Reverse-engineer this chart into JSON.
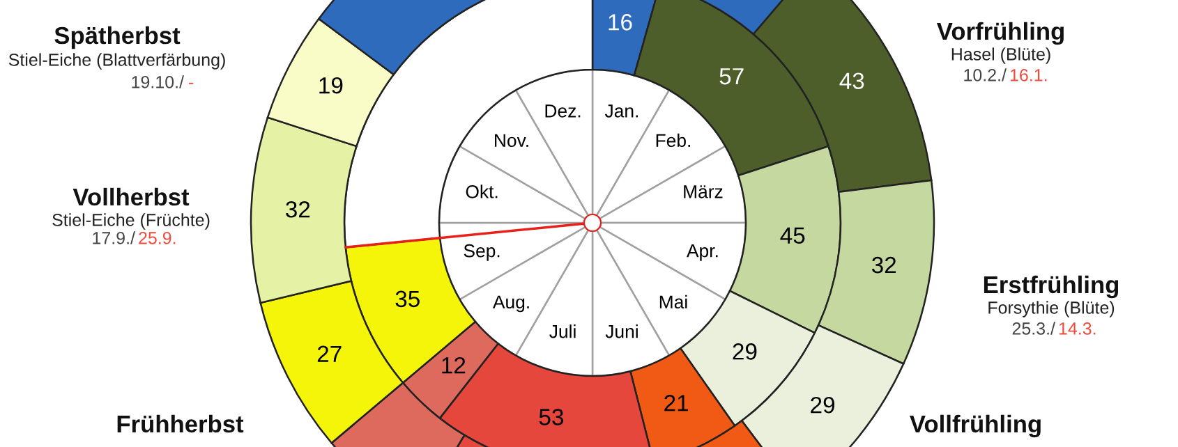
{
  "chart_data": {
    "type": "donut",
    "series": [
      {
        "values": [
          8.33,
          8.33,
          8.33,
          8.33,
          8.33,
          8.33,
          8.33,
          8.33,
          8.33,
          8.33,
          8.33,
          8.33
        ],
        "colors": [
          "#ffffff",
          "#ffffff",
          "#ffffff",
          "#ffffff",
          "#ffffff",
          "#ffffff",
          "#ffffff",
          "#ffffff",
          "#ffffff",
          "#ffffff",
          "#ffffff",
          "#ffffff"
        ]
      },
      {
        "values": [
          16,
          57,
          45,
          29,
          21,
          53,
          12,
          35,
          97
        ],
        "value_labels": [
          "16",
          "57",
          "45",
          "29",
          "21",
          "53",
          "12",
          "35",
          null
        ],
        "colors": [
          "#2f6bbd",
          "#4e5e2a",
          "#c5d8a0",
          "#eaf0dc",
          "#f05a14",
          "#e5473d",
          "#de6a5e",
          "#f5f50a",
          "#ffffff"
        ]
      },
      {
        "values": [
          41,
          43,
          32,
          29,
          24,
          45,
          19,
          27,
          32,
          19,
          54
        ],
        "value_labels": [
          null,
          "43",
          "32",
          "29",
          null,
          null,
          null,
          "27",
          "32",
          "19",
          null
        ],
        "colors": [
          "#2f6bbd",
          "#4e5e2a",
          "#c5d8a0",
          "#eaf0dc",
          "#f05a14",
          "#e5473d",
          "#de6a5e",
          "#f5f50a",
          "#e5f2a5",
          "#fafcc8",
          "#2f6bbd"
        ]
      }
    ],
    "annotations": [
      "Jan.",
      "Feb.",
      "März",
      "Apr.",
      "Mai",
      "Juni",
      "Juli",
      "Aug.",
      "Sep.",
      "Okt.",
      "Nov.",
      "Dez.",
      "Spätherbst",
      "Stiel-Eiche (Blattverfärbung)",
      "19.10./",
      "-",
      "Vollherbst",
      "Stiel-Eiche (Früchte)",
      "17.9./",
      "25.9.",
      "Frühherbst",
      "Vorfrühling",
      "Hasel (Blüte)",
      "10.2./",
      "16.1.",
      "Erstfrühling",
      "Forsythie (Blüte)",
      "25.3./",
      "14.3.",
      "Vollfrühling"
    ]
  }
}
